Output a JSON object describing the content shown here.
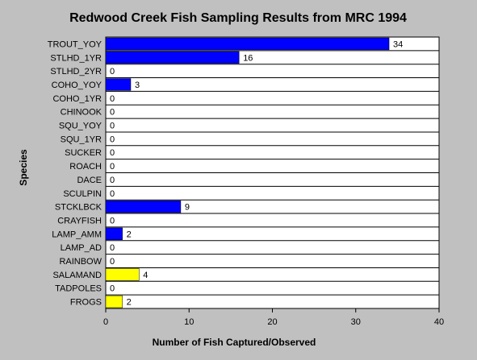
{
  "chart_data": {
    "type": "bar",
    "orientation": "horizontal",
    "title": "Redwood Creek Fish Sampling Results from MRC 1994",
    "xlabel": "Number of Fish Captured/Observed",
    "ylabel": "Species",
    "xlim": [
      0,
      40
    ],
    "xticks": [
      0,
      10,
      20,
      30,
      40
    ],
    "grid": "horizontal lines between categories",
    "legend": "none",
    "categories": [
      "TROUT_YOY",
      "STLHD_1YR",
      "STLHD_2YR",
      "COHO_YOY",
      "COHO_1YR",
      "CHINOOK",
      "SQU_YOY",
      "SQU_1YR",
      "SUCKER",
      "ROACH",
      "DACE",
      "SCULPIN",
      "STCKLBCK",
      "CRAYFISH",
      "LAMP_AMM",
      "LAMP_AD",
      "RAINBOW",
      "SALAMAND",
      "TADPOLES",
      "FROGS"
    ],
    "values": [
      34,
      16,
      0,
      3,
      0,
      0,
      0,
      0,
      0,
      0,
      0,
      0,
      9,
      0,
      2,
      0,
      0,
      4,
      0,
      2
    ],
    "colors": [
      "#0000ff",
      "#0000ff",
      "#0000ff",
      "#0000ff",
      "#0000ff",
      "#0000ff",
      "#0000ff",
      "#0000ff",
      "#0000ff",
      "#0000ff",
      "#0000ff",
      "#0000ff",
      "#0000ff",
      "#0000ff",
      "#0000ff",
      "#0000ff",
      "#0000ff",
      "#ffff00",
      "#ffff00",
      "#ffff00"
    ]
  }
}
